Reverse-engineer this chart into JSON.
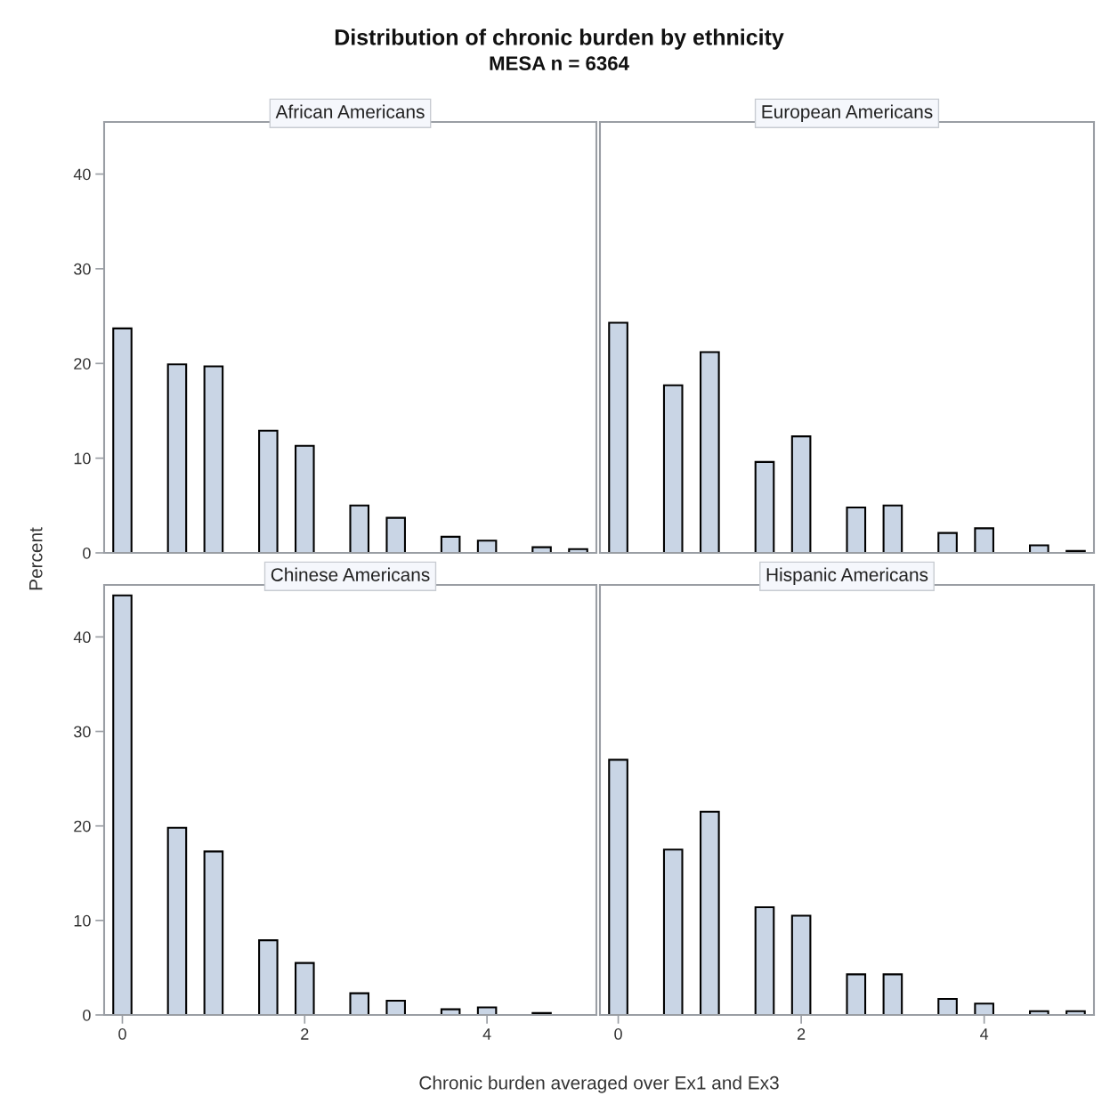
{
  "chart_data": [
    {
      "type": "bar",
      "title": "African Americans",
      "annotations": [
        "Distribution of chronic burden by ethnicity",
        "MESA n = 6364"
      ],
      "ylabel": "Percent",
      "x": [
        0,
        0.6,
        1,
        1.6,
        2,
        2.6,
        3,
        3.6,
        4,
        4.6,
        5
      ],
      "values": [
        23.7,
        19.9,
        19.7,
        12.9,
        11.3,
        5.0,
        3.7,
        1.7,
        1.3,
        0.6,
        0.4
      ],
      "color": "#c9d5e5",
      "xlim": [
        -0.2,
        5.2
      ],
      "ylim": [
        0,
        45.5
      ],
      "xticks": [
        0,
        2,
        4
      ],
      "yticks": [
        0,
        10,
        20,
        30,
        40
      ],
      "tick_labels": "y",
      "grid": false
    },
    {
      "type": "bar",
      "title": "European Americans",
      "x": [
        0,
        0.6,
        1,
        1.6,
        2,
        2.6,
        3,
        3.6,
        4,
        4.6,
        5
      ],
      "values": [
        24.3,
        17.7,
        21.2,
        9.6,
        12.3,
        4.8,
        5.0,
        2.1,
        2.6,
        0.8,
        0.2
      ],
      "color": "#c9d5e5",
      "xlim": [
        -0.2,
        5.2
      ],
      "ylim": [
        0,
        45.5
      ],
      "xticks": [
        0,
        2,
        4
      ],
      "yticks": [
        0,
        10,
        20,
        30,
        40
      ],
      "tick_labels": false,
      "grid": false
    },
    {
      "type": "bar",
      "title": "Chinese Americans",
      "x": [
        0,
        0.6,
        1,
        1.6,
        2,
        2.6,
        3,
        3.6,
        4,
        4.6
      ],
      "values": [
        44.4,
        19.8,
        17.3,
        7.9,
        5.5,
        2.3,
        1.5,
        0.6,
        0.8,
        0.2
      ],
      "color": "#c9d5e5",
      "xlim": [
        -0.2,
        5.2
      ],
      "ylim": [
        0,
        45.5
      ],
      "xticks": [
        0,
        2,
        4
      ],
      "yticks": [
        0,
        10,
        20,
        30,
        40
      ],
      "grid": false
    },
    {
      "type": "bar",
      "title": "Hispanic Americans",
      "xlabel": "Chronic burden averaged over Ex1 and Ex3",
      "x": [
        0,
        0.6,
        1,
        1.6,
        2,
        2.6,
        3,
        3.6,
        4,
        4.6,
        5
      ],
      "values": [
        27.0,
        17.5,
        21.5,
        11.4,
        10.5,
        4.3,
        4.3,
        1.7,
        1.2,
        0.4,
        0.4
      ],
      "color": "#c9d5e5",
      "xlim": [
        -0.2,
        5.2
      ],
      "ylim": [
        0,
        45.5
      ],
      "xticks": [
        0,
        2,
        4
      ],
      "yticks": [
        0,
        10,
        20,
        30,
        40
      ],
      "tick_labels": "x",
      "grid": false
    }
  ]
}
